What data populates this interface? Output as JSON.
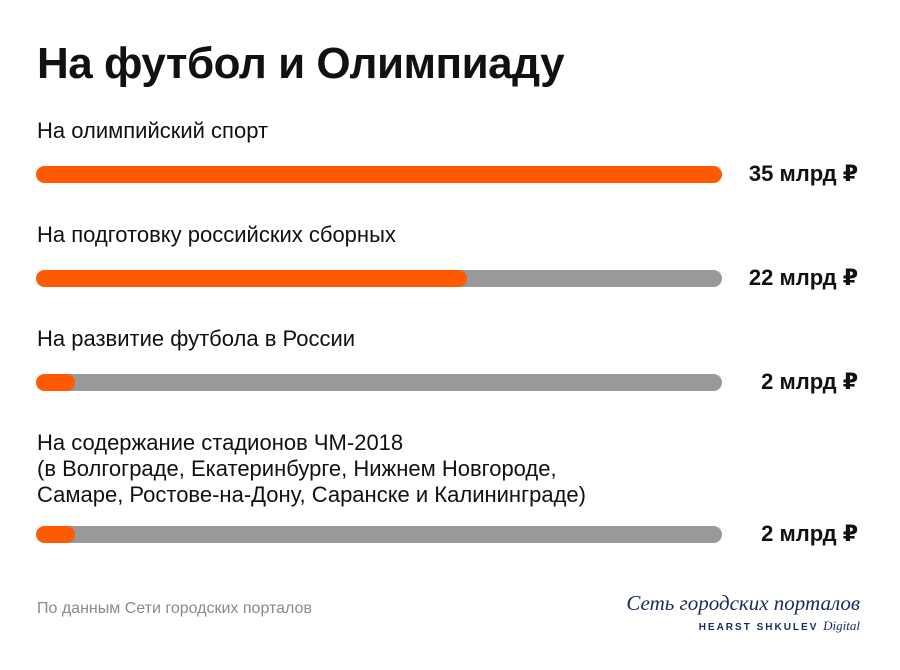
{
  "chart_data": {
    "type": "bar",
    "orientation": "horizontal",
    "title": "На футбол и Олимпиаду",
    "categories": [
      "На олимпийский спорт",
      "На подготовку российских сборных",
      "На развитие футбола в России",
      "На содержание стадионов ЧМ-2018\n(в Волгограде, Екатеринбурге, Нижнем Новгороде,\nСамаре, Ростове-на-Дону, Саранске и Калининграде)"
    ],
    "values": [
      35,
      22,
      2,
      2
    ],
    "value_labels": [
      "35 млрд ₽",
      "22 млрд ₽",
      "2 млрд ₽",
      "2 млрд ₽"
    ],
    "xlim": [
      0,
      35
    ],
    "grid": false,
    "colors": {
      "fill": "#ff5a00",
      "track": "#999999"
    }
  },
  "footer": {
    "source": "По данным Сети городских порталов",
    "logo_main": "Сеть городских порталов",
    "logo_sub": "HEARST SHKULEV",
    "logo_sub_digital": "Digital"
  }
}
